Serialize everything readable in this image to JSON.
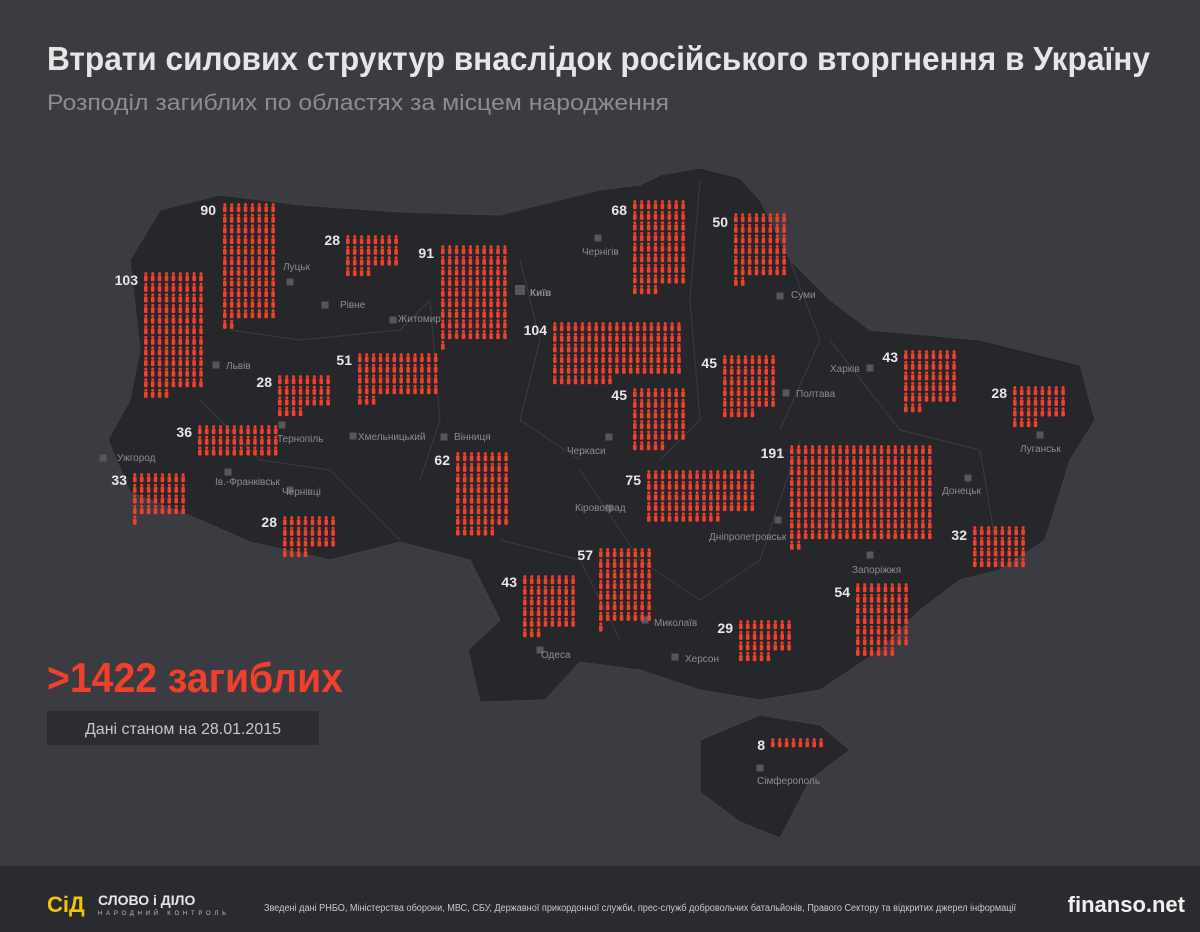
{
  "header": {
    "title": "Втрати силових структур внаслідок російського вторгнення в Україну",
    "subtitle": "Розподіл загиблих по областях за місцем народження"
  },
  "counts": [
    90,
    103,
    28,
    91,
    68,
    50,
    104,
    51,
    28,
    36,
    33,
    28,
    62,
    45,
    45,
    43,
    28,
    191,
    75,
    32,
    57,
    43,
    54,
    29,
    8
  ],
  "cities": [
    "Луцьк",
    "Рівне",
    "Житомир",
    "Київ",
    "Чернігів",
    "Суми",
    "Львів",
    "Тернопіль",
    "Хмельницький",
    "Вінниця",
    "Ужгород",
    "Ів.-Франківськ",
    "Чернівці",
    "Черкаси",
    "Полтава",
    "Харків",
    "Луганськ",
    "Донецьк",
    "Кіровоград",
    "Дніпропетровськ",
    "Запоріжжя",
    "Миколаїв",
    "Одеса",
    "Херсон",
    "Сімферополь"
  ],
  "summary": {
    "total": ">1422 загиблих",
    "date": "Дані станом на 28.01.2015"
  },
  "footer": {
    "logo_mark": "СіД",
    "logo_name": "СЛОВО і ДІЛО",
    "logo_tagline": "НАРОДНИЙ КОНТРОЛЬ",
    "source": "Зведені дані  РНБО, Міністерства оборони, МВС, СБУ, Державної прикордонної служби, прес-служб добровольчих батальйонів, Правого Сектору та відкритих джерел інформації",
    "watermark": "finanso.net"
  }
}
